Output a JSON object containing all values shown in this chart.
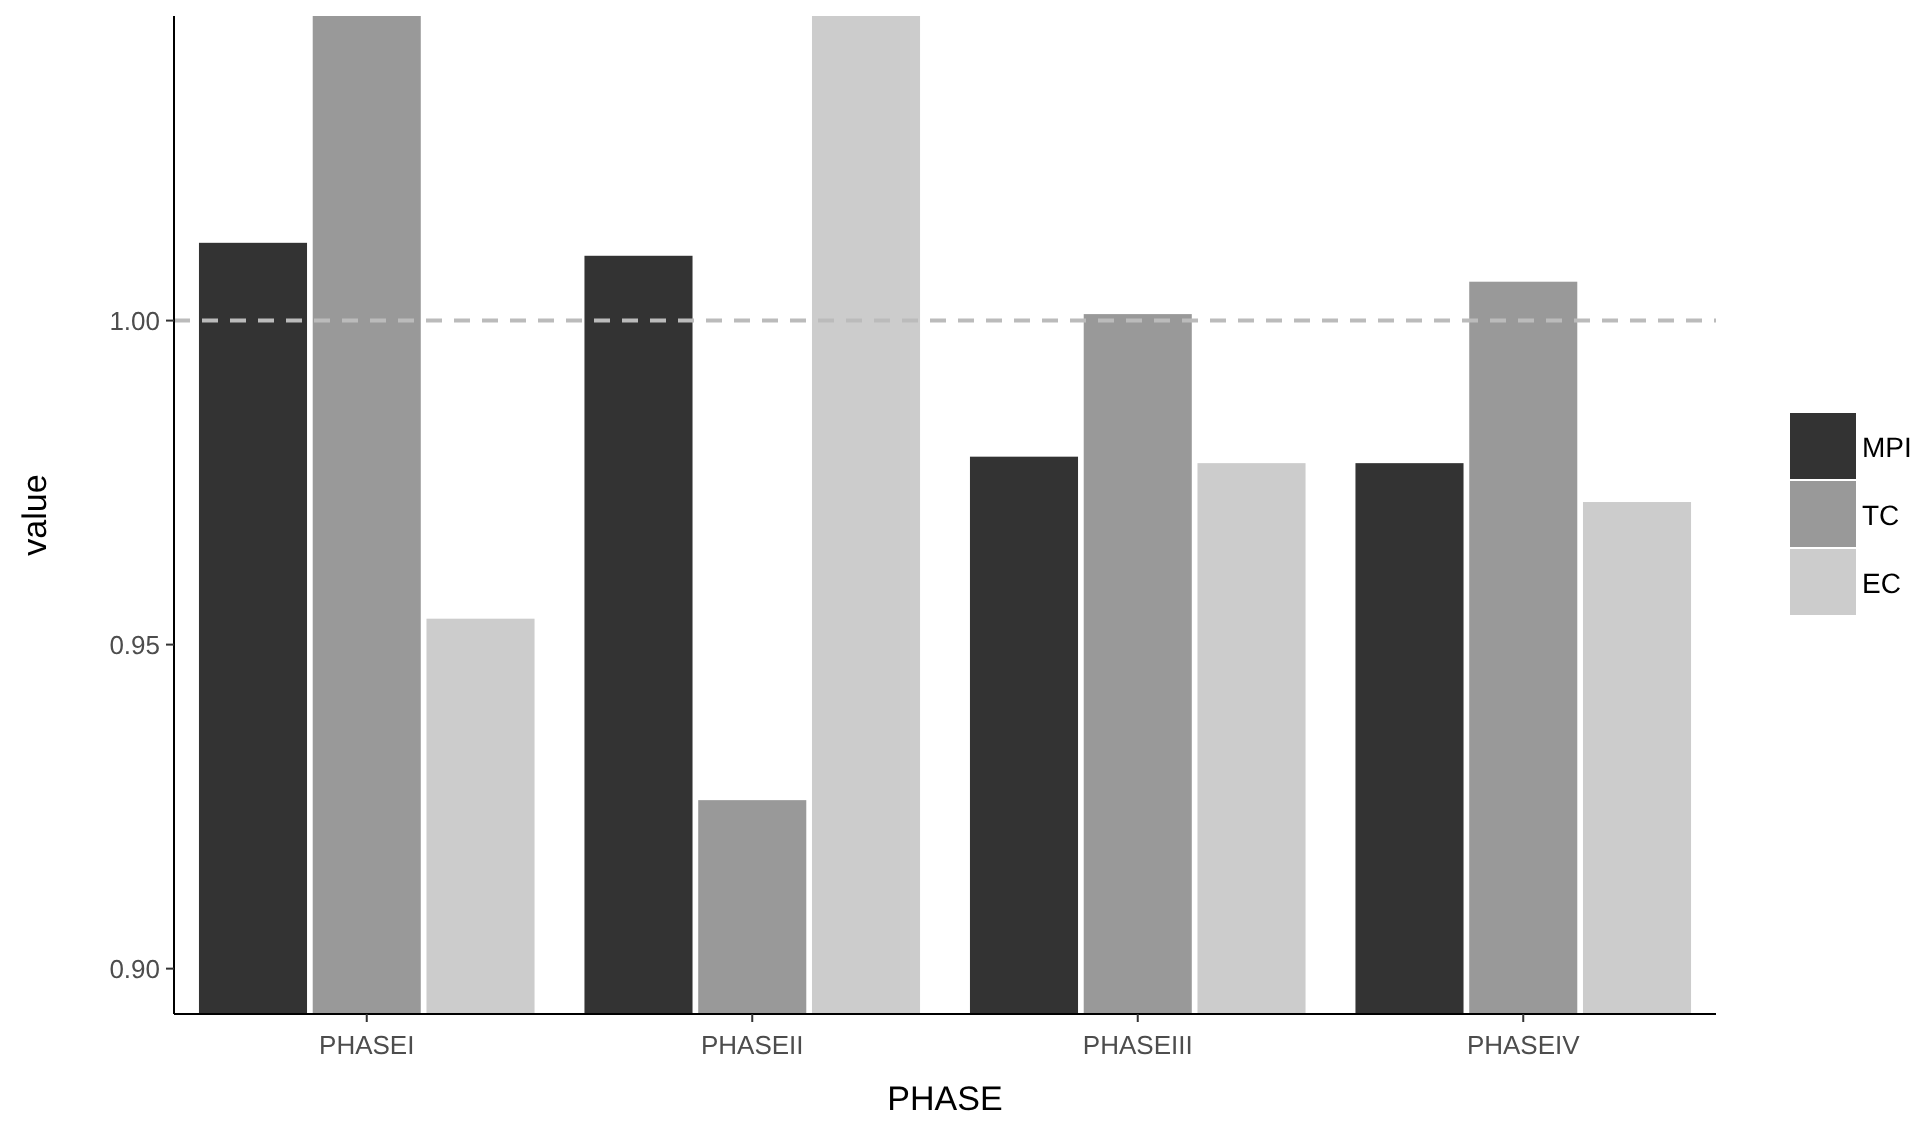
{
  "chart_data": {
    "type": "bar",
    "xlabel": "PHASE",
    "ylabel": "value",
    "categories": [
      "PHASEI",
      "PHASEII",
      "PHASEIII",
      "PHASEIV"
    ],
    "series": [
      {
        "name": "MPI",
        "color": "#333333",
        "values": [
          1.012,
          1.01,
          0.979,
          0.978
        ]
      },
      {
        "name": "TC",
        "color": "#999999",
        "values": [
          1.047,
          0.926,
          1.001,
          1.006
        ]
      },
      {
        "name": "EC",
        "color": "#cccccc",
        "values": [
          0.954,
          1.047,
          0.978,
          0.972
        ]
      }
    ],
    "ylim": [
      0.893,
      1.047
    ],
    "yticks": [
      {
        "value": 0.9,
        "label": "0.90"
      },
      {
        "value": 0.95,
        "label": "0.95"
      },
      {
        "value": 1.0,
        "label": "1.00"
      }
    ],
    "ref_lines": [
      {
        "axis": "y",
        "value": 1.0,
        "color": "#bbbbbb",
        "line_style": "dashed"
      }
    ],
    "grid": false,
    "legend": "right"
  }
}
